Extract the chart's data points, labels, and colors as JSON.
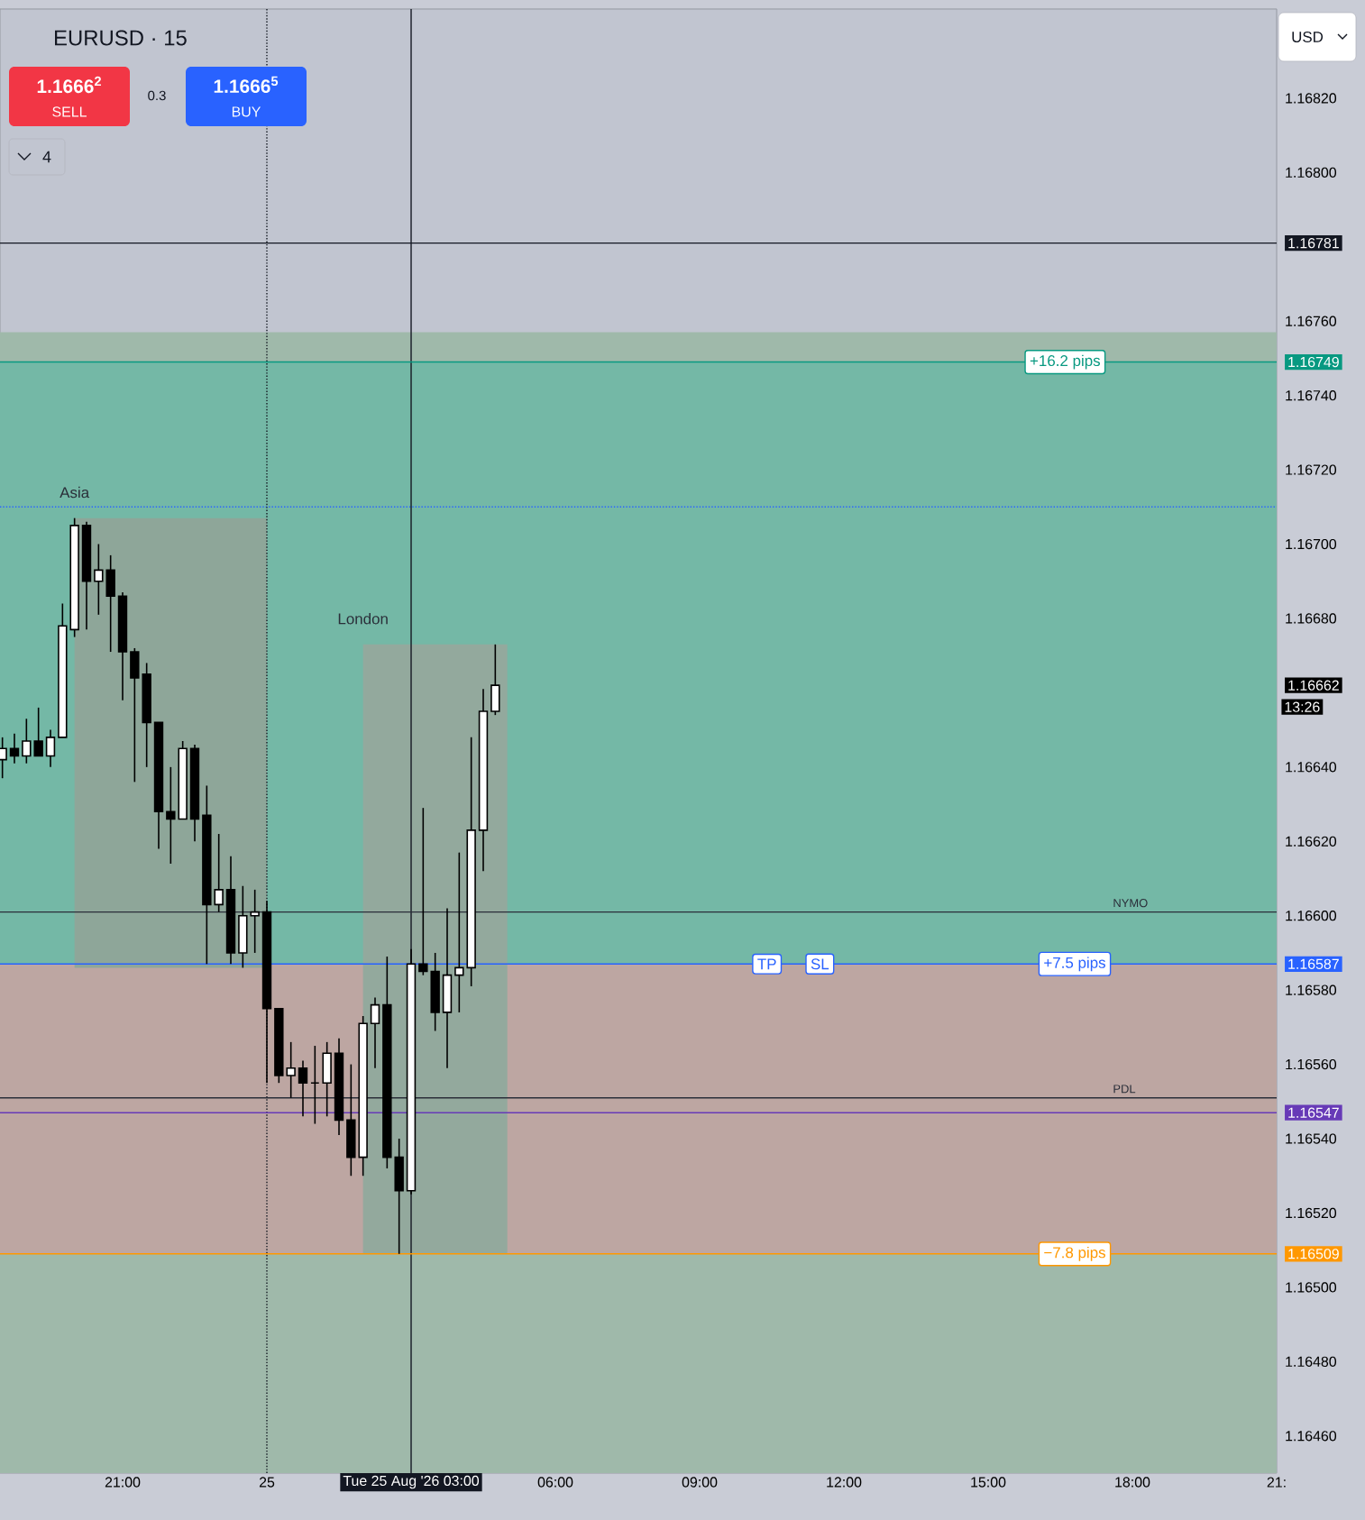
{
  "chart_data": {
    "type": "candlestick",
    "title": "EURUSD · 15",
    "x": [
      "2026-08-24T18:30",
      "2026-08-24T18:45",
      "2026-08-24T19:00",
      "2026-08-24T19:15",
      "2026-08-24T19:30",
      "2026-08-24T19:45",
      "2026-08-24T20:00",
      "2026-08-24T20:15",
      "2026-08-24T20:30",
      "2026-08-24T20:45",
      "2026-08-24T21:00",
      "2026-08-24T21:15",
      "2026-08-24T21:30",
      "2026-08-24T21:45",
      "2026-08-24T22:00",
      "2026-08-24T22:15",
      "2026-08-24T22:30",
      "2026-08-24T22:45",
      "2026-08-24T23:00",
      "2026-08-24T23:15",
      "2026-08-24T23:30",
      "2026-08-24T23:45",
      "2026-08-25T00:00",
      "2026-08-25T00:15",
      "2026-08-25T00:30",
      "2026-08-25T00:45",
      "2026-08-25T01:00",
      "2026-08-25T01:15",
      "2026-08-25T01:30",
      "2026-08-25T01:45",
      "2026-08-25T02:00",
      "2026-08-25T02:15",
      "2026-08-25T02:30",
      "2026-08-25T02:45",
      "2026-08-25T03:00",
      "2026-08-25T03:15",
      "2026-08-25T03:30",
      "2026-08-25T03:45",
      "2026-08-25T04:00",
      "2026-08-25T04:15",
      "2026-08-25T04:30",
      "2026-08-25T04:45"
    ],
    "ohlc": [
      [
        1.16642,
        1.16648,
        1.16637,
        1.16645
      ],
      [
        1.16645,
        1.16649,
        1.16641,
        1.16643
      ],
      [
        1.16643,
        1.16653,
        1.16641,
        1.16647
      ],
      [
        1.16647,
        1.16656,
        1.16643,
        1.16643
      ],
      [
        1.16643,
        1.1665,
        1.1664,
        1.16648
      ],
      [
        1.16648,
        1.16684,
        1.16648,
        1.16678
      ],
      [
        1.16677,
        1.16707,
        1.16675,
        1.16705
      ],
      [
        1.16705,
        1.16706,
        1.16677,
        1.1669
      ],
      [
        1.1669,
        1.167,
        1.16681,
        1.16693
      ],
      [
        1.16693,
        1.16697,
        1.16671,
        1.16686
      ],
      [
        1.16686,
        1.16687,
        1.16658,
        1.16671
      ],
      [
        1.16671,
        1.16672,
        1.16636,
        1.16664
      ],
      [
        1.16665,
        1.16668,
        1.1664,
        1.16652
      ],
      [
        1.16652,
        1.16652,
        1.16618,
        1.16628
      ],
      [
        1.16628,
        1.1664,
        1.16614,
        1.16626
      ],
      [
        1.16626,
        1.16647,
        1.16626,
        1.16645
      ],
      [
        1.16645,
        1.16646,
        1.1662,
        1.16626
      ],
      [
        1.16627,
        1.16635,
        1.16587,
        1.16603
      ],
      [
        1.16603,
        1.16622,
        1.16601,
        1.16607
      ],
      [
        1.16607,
        1.16616,
        1.16587,
        1.1659
      ],
      [
        1.1659,
        1.16608,
        1.16586,
        1.166
      ],
      [
        1.166,
        1.16607,
        1.1659,
        1.16601
      ],
      [
        1.16601,
        1.16604,
        1.16555,
        1.16575
      ],
      [
        1.16575,
        1.16575,
        1.16555,
        1.16557
      ],
      [
        1.16557,
        1.16566,
        1.16551,
        1.16559
      ],
      [
        1.16559,
        1.16561,
        1.16546,
        1.16555
      ],
      [
        1.16555,
        1.16565,
        1.16544,
        1.16555
      ],
      [
        1.16555,
        1.16566,
        1.16546,
        1.16563
      ],
      [
        1.16563,
        1.16567,
        1.16541,
        1.16545
      ],
      [
        1.16545,
        1.1656,
        1.1653,
        1.16535
      ],
      [
        1.16535,
        1.16573,
        1.1653,
        1.16571
      ],
      [
        1.16571,
        1.16578,
        1.16559,
        1.16576
      ],
      [
        1.16576,
        1.16589,
        1.16532,
        1.16535
      ],
      [
        1.16535,
        1.1654,
        1.16509,
        1.16526
      ],
      [
        1.16526,
        1.16591,
        1.16525,
        1.16587
      ],
      [
        1.16587,
        1.16629,
        1.16584,
        1.16585
      ],
      [
        1.16585,
        1.1659,
        1.16569,
        1.16574
      ],
      [
        1.16574,
        1.16602,
        1.16559,
        1.16584
      ],
      [
        1.16584,
        1.16617,
        1.16574,
        1.16586
      ],
      [
        1.16586,
        1.16648,
        1.16581,
        1.16623
      ],
      [
        1.16623,
        1.16661,
        1.16612,
        1.16655
      ],
      [
        1.16655,
        1.16673,
        1.16654,
        1.16662
      ]
    ],
    "xlim": [
      "2026-08-24T18:27",
      "2026-08-25T21:00"
    ],
    "ylim": [
      1.1645,
      1.16844
    ],
    "xticks": [
      {
        "value": "2026-08-24T21:00",
        "label": "21:00"
      },
      {
        "value": "2026-08-25T00:00",
        "label": "25"
      },
      {
        "value": "2026-08-25T03:00",
        "label": "Tue 25 Aug '26 03:00"
      },
      {
        "value": "2026-08-25T06:00",
        "label": "06:00"
      },
      {
        "value": "2026-08-25T09:00",
        "label": "09:00"
      },
      {
        "value": "2026-08-25T12:00",
        "label": "12:00"
      },
      {
        "value": "2026-08-25T15:00",
        "label": "15:00"
      },
      {
        "value": "2026-08-25T18:00",
        "label": "18:00"
      },
      {
        "value": "2026-08-25T21:00",
        "label": "21:"
      }
    ],
    "yticks": [
      {
        "value": 1.1646,
        "label": "1.16460"
      },
      {
        "value": 1.1648,
        "label": "1.16480"
      },
      {
        "value": 1.165,
        "label": "1.16500"
      },
      1.16509,
      {
        "value": 1.1652,
        "label": "1.16520"
      },
      {
        "value": 1.1654,
        "label": "1.16540"
      },
      1.16547,
      {
        "value": 1.1656,
        "label": "1.16560"
      },
      {
        "value": 1.1658,
        "label": "1.16580"
      },
      1.16587,
      {
        "value": 1.166,
        "label": "1.16600"
      },
      {
        "value": 1.1662,
        "label": "1.16620"
      },
      {
        "value": 1.1664,
        "label": "1.16640"
      },
      1.16662,
      {
        "value": 1.1668,
        "label": "1.16680"
      },
      {
        "value": 1.167,
        "label": "1.16700"
      },
      {
        "value": 1.1672,
        "label": "1.16720"
      },
      {
        "value": 1.1674,
        "label": "1.16740"
      },
      1.16749,
      {
        "value": 1.1676,
        "label": "1.16760"
      },
      1.16781,
      {
        "value": 1.168,
        "label": "1.16800"
      },
      {
        "value": 1.1682,
        "label": "1.16820"
      }
    ],
    "bands": [
      {
        "axis": "y",
        "from": 1.1645,
        "to": 1.16757,
        "color": "#9fb9aa"
      },
      {
        "axis": "y",
        "from": 1.16587,
        "to": 1.16749,
        "color": "#74b8a6"
      },
      {
        "axis": "y",
        "from": 1.16509,
        "to": 1.16587,
        "color": "#bda6a2"
      },
      {
        "axis": "x",
        "from": "2026-08-24T20:00",
        "to": "2026-08-25T00:00",
        "label": "Asia",
        "color": "#8ea699"
      },
      {
        "axis": "x",
        "from": "2026-08-25T02:00",
        "to": "2026-08-25T05:00",
        "label": "London",
        "color": "#93a99d"
      }
    ],
    "ref_lines": [
      {
        "axis": "y",
        "value": 1.1671,
        "color": "#2962ff",
        "line_style": "dotted"
      },
      {
        "axis": "x",
        "value": "2026-08-25T00:00",
        "color": "#131722",
        "line_style": "dotted"
      },
      {
        "axis": "x",
        "value": "2026-08-25T03:00",
        "color": "#131722"
      },
      {
        "axis": "y",
        "value": 1.16781,
        "color": "#131722"
      },
      {
        "axis": "y",
        "value": 1.16601,
        "label": "NYMO",
        "color": "#2a2e39"
      },
      {
        "axis": "y",
        "value": 1.16551,
        "label": "PDL",
        "color": "#2a2e39"
      },
      {
        "axis": "y",
        "value": 1.16547,
        "color": "#673ab7"
      },
      {
        "axis": "y",
        "value": 1.16587,
        "color": "#2962ff"
      },
      {
        "axis": "y",
        "value": 1.16749,
        "color": "#089981"
      },
      {
        "axis": "y",
        "value": 1.16509,
        "color": "#ff9800"
      }
    ],
    "annotations": [
      {
        "text": "+16.2 pips",
        "x": "2026-08-25T16:36",
        "y": 1.16749
      },
      {
        "text": "+7.5 pips",
        "x": "2026-08-25T16:48",
        "y": 1.16587
      },
      {
        "text": "−7.8 pips",
        "x": "2026-08-25T16:48",
        "y": 1.16509
      },
      {
        "text": "TP",
        "x": "2026-08-25T10:24",
        "y": 1.16587
      },
      {
        "text": "SL",
        "x": "2026-08-25T11:30",
        "y": 1.16587
      },
      "1.1666$^{2}$",
      "SELL",
      "0.3",
      "1.1666$^{5}$",
      "BUY",
      "4",
      "USD",
      "13:26"
    ]
  }
}
